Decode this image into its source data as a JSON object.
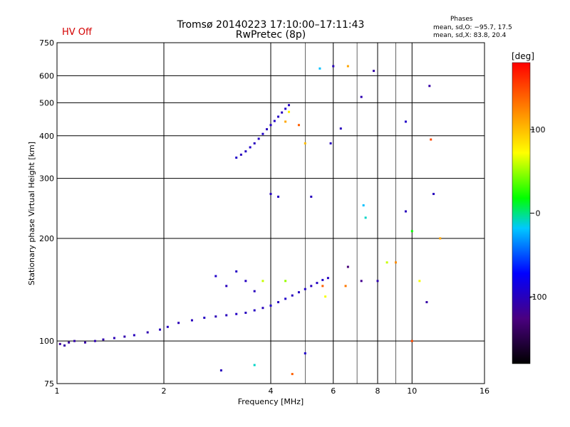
{
  "header": {
    "title_line1": "Tromsø 20140223 17:10:00–17:11:43",
    "title_line2": "RwPretec (8p)",
    "status": "HV Off"
  },
  "phases": {
    "heading": "Phases",
    "o_line": "mean, sd,O: −95.7, 17.5",
    "x_line": "mean, sd,X: 83.8, 20.4"
  },
  "chart_data": {
    "type": "scatter",
    "xlabel": "Frequency [MHz]",
    "ylabel": "Stationary phase Virtual Height [km]",
    "x_scale": "log",
    "y_scale": "log",
    "xlim": [
      1,
      16
    ],
    "ylim": [
      75,
      750
    ],
    "x_ticks": [
      1,
      2,
      4,
      6,
      8,
      10,
      16
    ],
    "x_tick_labels": [
      "1",
      "2",
      "4",
      "6",
      "8",
      "10",
      "16"
    ],
    "x_grid_lines": [
      2,
      4,
      6,
      8,
      10
    ],
    "x_minor_grid": [
      5,
      7,
      9
    ],
    "y_ticks": [
      75,
      100,
      200,
      300,
      400,
      500,
      600,
      750
    ],
    "y_tick_labels": [
      "75",
      "100",
      "200",
      "300",
      "400",
      "500",
      "600",
      "750"
    ],
    "y_grid_lines": [
      100,
      200,
      300,
      400,
      500,
      600
    ],
    "grid": true,
    "colorbar": {
      "label": "[deg]",
      "ticks": [
        100,
        0,
        -100
      ],
      "tick_labels": [
        "100",
        "0",
        "-100"
      ],
      "range": [
        -180,
        180
      ]
    },
    "series": [
      {
        "description": "lower trace",
        "points": [
          [
            1.02,
            98,
            -115
          ],
          [
            1.05,
            97,
            -110
          ],
          [
            1.08,
            99,
            -112
          ],
          [
            1.12,
            100,
            -108
          ],
          [
            1.2,
            99,
            -110
          ],
          [
            1.28,
            100,
            -105
          ],
          [
            1.35,
            101,
            -108
          ],
          [
            1.45,
            102,
            -103
          ],
          [
            1.55,
            103,
            -107
          ],
          [
            1.65,
            104,
            -100
          ],
          [
            1.8,
            106,
            -105
          ],
          [
            1.95,
            108,
            -100
          ],
          [
            2.05,
            110,
            -98
          ],
          [
            2.2,
            113,
            -102
          ],
          [
            2.4,
            115,
            -100
          ],
          [
            2.6,
            117,
            -98
          ],
          [
            2.8,
            118,
            -103
          ],
          [
            3.0,
            119,
            -100
          ],
          [
            3.2,
            120,
            -97
          ],
          [
            3.4,
            121,
            -100
          ],
          [
            3.6,
            123,
            -98
          ],
          [
            3.8,
            125,
            -100
          ],
          [
            4.0,
            127,
            -96
          ],
          [
            4.2,
            130,
            -100
          ],
          [
            4.4,
            133,
            -95
          ],
          [
            4.6,
            136,
            -100
          ],
          [
            4.8,
            139,
            -98
          ],
          [
            5.0,
            142,
            -95
          ],
          [
            5.2,
            145,
            -100
          ],
          [
            5.4,
            148,
            -97
          ],
          [
            5.6,
            151,
            -95
          ],
          [
            5.8,
            153,
            -98
          ]
        ]
      },
      {
        "description": "upper trace",
        "points": [
          [
            3.2,
            345,
            -95
          ],
          [
            3.3,
            352,
            -100
          ],
          [
            3.4,
            360,
            -98
          ],
          [
            3.5,
            370,
            -95
          ],
          [
            3.6,
            380,
            -100
          ],
          [
            3.7,
            392,
            -97
          ],
          [
            3.8,
            405,
            -95
          ],
          [
            3.9,
            418,
            -100
          ],
          [
            4.0,
            430,
            -98
          ],
          [
            4.1,
            442,
            -95
          ],
          [
            4.2,
            455,
            -97
          ],
          [
            4.3,
            468,
            -100
          ],
          [
            4.4,
            480,
            -95
          ],
          [
            4.5,
            492,
            -98
          ]
        ]
      },
      {
        "description": "scattered echoes",
        "points": [
          [
            2.8,
            155,
            -95
          ],
          [
            3.0,
            145,
            -100
          ],
          [
            3.2,
            160,
            -97
          ],
          [
            3.4,
            150,
            -98
          ],
          [
            3.6,
            140,
            -100
          ],
          [
            3.8,
            150,
            60
          ],
          [
            4.4,
            150,
            50
          ],
          [
            5.6,
            145,
            140
          ],
          [
            5.7,
            135,
            70
          ],
          [
            6.5,
            145,
            130
          ],
          [
            6.6,
            165,
            -130
          ],
          [
            7.2,
            150,
            -120
          ],
          [
            8.0,
            150,
            -105
          ],
          [
            10.5,
            150,
            70
          ],
          [
            11.0,
            130,
            -110
          ],
          [
            4.4,
            440,
            110
          ],
          [
            4.5,
            470,
            80
          ],
          [
            4.8,
            430,
            140
          ],
          [
            5.0,
            380,
            100
          ],
          [
            4.0,
            270,
            -100
          ],
          [
            4.2,
            265,
            -98
          ],
          [
            5.2,
            265,
            -100
          ],
          [
            5.9,
            380,
            -100
          ],
          [
            6.3,
            420,
            -100
          ],
          [
            7.2,
            520,
            -105
          ],
          [
            6.0,
            640,
            -100
          ],
          [
            5.5,
            630,
            -20
          ],
          [
            6.6,
            640,
            110
          ],
          [
            7.8,
            620,
            -110
          ],
          [
            9.6,
            440,
            -95
          ],
          [
            11.2,
            560,
            -110
          ],
          [
            11.3,
            390,
            150
          ],
          [
            7.3,
            250,
            -20
          ],
          [
            7.4,
            230,
            -10
          ],
          [
            9.6,
            240,
            -100
          ],
          [
            11.5,
            270,
            -100
          ],
          [
            12.0,
            200,
            110
          ],
          [
            10.0,
            210,
            20
          ],
          [
            9.0,
            170,
            120
          ],
          [
            8.5,
            170,
            60
          ],
          [
            2.9,
            82,
            -100
          ],
          [
            3.6,
            85,
            -10
          ],
          [
            4.6,
            80,
            140
          ],
          [
            5.0,
            92,
            -95
          ],
          [
            10.0,
            100,
            150
          ]
        ]
      }
    ]
  }
}
